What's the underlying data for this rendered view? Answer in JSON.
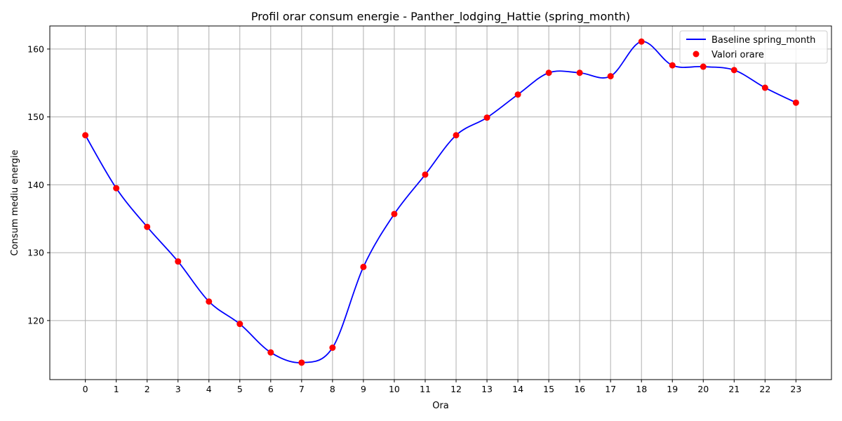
{
  "chart_data": {
    "type": "line",
    "title": "Profil orar consum energie - Panther_lodging_Hattie (spring_month)",
    "xlabel": "Ora",
    "ylabel": "Consum mediu energie",
    "x": [
      0,
      1,
      2,
      3,
      4,
      5,
      6,
      7,
      8,
      9,
      10,
      11,
      12,
      13,
      14,
      15,
      16,
      17,
      18,
      19,
      20,
      21,
      22,
      23
    ],
    "xticks": [
      "0",
      "1",
      "2",
      "3",
      "4",
      "5",
      "6",
      "7",
      "8",
      "9",
      "10",
      "11",
      "12",
      "13",
      "14",
      "15",
      "16",
      "17",
      "18",
      "19",
      "20",
      "21",
      "22",
      "23"
    ],
    "yticks": [
      "120",
      "130",
      "140",
      "150",
      "160"
    ],
    "ytick_values": [
      120,
      130,
      140,
      150,
      160
    ],
    "xlim": [
      -1.15,
      24.15
    ],
    "ylim": [
      111.3,
      163.4
    ],
    "grid": true,
    "legend_position": "top-right",
    "series": [
      {
        "name": "Baseline spring_month",
        "kind": "line",
        "color": "#0000ff",
        "values": [
          147.3,
          139.5,
          133.8,
          128.7,
          122.8,
          119.5,
          115.3,
          113.8,
          116.0,
          127.9,
          135.7,
          141.5,
          147.3,
          149.9,
          153.3,
          156.5,
          156.5,
          156.0,
          161.1,
          157.6,
          157.4,
          156.9,
          154.3,
          152.1
        ]
      },
      {
        "name": "Valori orare",
        "kind": "scatter",
        "color": "#ff0000",
        "values": [
          147.3,
          139.5,
          133.8,
          128.7,
          122.8,
          119.5,
          115.3,
          113.8,
          116.0,
          127.9,
          135.7,
          141.5,
          147.3,
          149.9,
          153.3,
          156.5,
          156.5,
          156.0,
          161.1,
          157.6,
          157.4,
          156.9,
          154.3,
          152.1
        ]
      }
    ]
  }
}
